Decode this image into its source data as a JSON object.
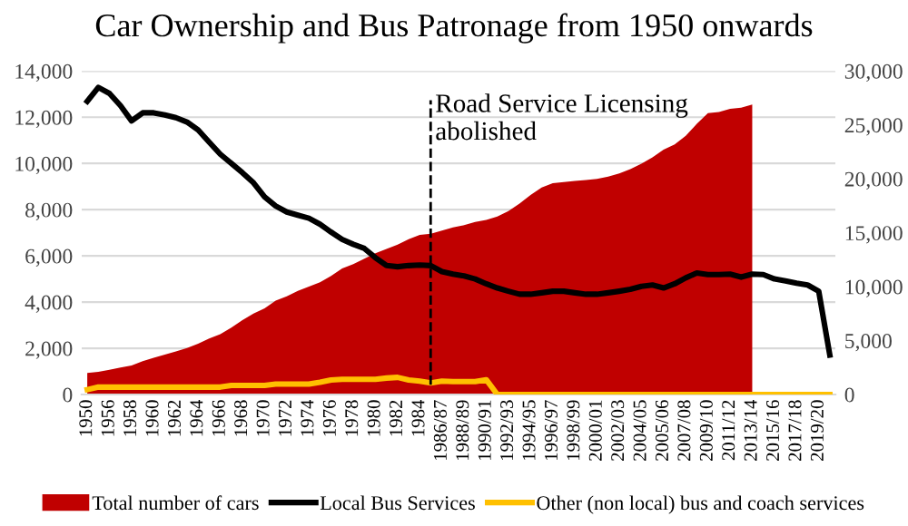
{
  "chart_data": {
    "type": "line",
    "title": "Car Ownership and Bus Patronage from 1950 onwards",
    "categories": [
      "1950",
      null,
      "1956",
      null,
      "1958",
      null,
      "1960",
      null,
      "1962",
      null,
      "1964",
      null,
      "1966",
      null,
      "1968",
      null,
      "1970",
      null,
      "1972",
      null,
      "1974",
      null,
      "1976",
      null,
      "1978",
      null,
      "1980",
      null,
      "1982",
      null,
      "1984",
      null,
      "1986/87",
      null,
      "1988/89",
      null,
      "1990/91",
      null,
      "1992/93",
      null,
      "1994/95",
      null,
      "1996/97",
      null,
      "1998/99",
      null,
      "2000/01",
      null,
      "2002/03",
      null,
      "2004/05",
      null,
      "2005/06",
      null,
      "2007/08",
      null,
      "2009/10",
      null,
      "2011/12",
      null,
      "2013/14",
      null,
      "2015/16",
      null,
      "2017/18",
      null,
      "2019/20",
      null
    ],
    "series": [
      {
        "name": "Total number of cars",
        "type": "area",
        "axis": "y2",
        "color": "#c00000",
        "values": [
          2000,
          2100,
          2300,
          2500,
          2700,
          3100,
          3400,
          3700,
          4000,
          4300,
          4700,
          5200,
          5600,
          6200,
          6900,
          7500,
          8000,
          8700,
          9100,
          9600,
          10000,
          10400,
          11000,
          11700,
          12100,
          12600,
          13100,
          13500,
          13900,
          14400,
          14800,
          14900,
          15200,
          15500,
          15700,
          16000,
          16200,
          16500,
          17000,
          17700,
          18500,
          19200,
          19600,
          19700,
          19800,
          19900,
          20000,
          20200,
          20500,
          20900,
          21400,
          22000,
          22700,
          23200,
          24000,
          25100,
          26100,
          26200,
          26500,
          26600,
          26900,
          null,
          null,
          null,
          null,
          null,
          null,
          null
        ]
      },
      {
        "name": "Local Bus Services",
        "color": "#000000",
        "values": [
          12690,
          13290,
          13030,
          12500,
          11840,
          12190,
          12190,
          12100,
          11980,
          11790,
          11450,
          10920,
          10400,
          10000,
          9600,
          9160,
          8550,
          8160,
          7900,
          7760,
          7630,
          7370,
          7030,
          6710,
          6500,
          6320,
          5920,
          5580,
          5530,
          5580,
          5600,
          5580,
          5320,
          5210,
          5130,
          5000,
          4790,
          4610,
          4470,
          4340,
          4340,
          4400,
          4470,
          4470,
          4400,
          4340,
          4340,
          4400,
          4470,
          4550,
          4680,
          4740,
          4610,
          4790,
          5050,
          5260,
          5190,
          5190,
          5210,
          5080,
          5210,
          5190,
          5000,
          4920,
          4820,
          4740,
          4470,
          1710
        ]
      },
      {
        "name": "Other (non local) bus and coach services",
        "color": "#ffc000",
        "values": [
          210,
          320,
          320,
          320,
          320,
          320,
          320,
          320,
          320,
          320,
          320,
          320,
          320,
          390,
          390,
          390,
          390,
          450,
          450,
          450,
          450,
          530,
          630,
          660,
          660,
          660,
          660,
          710,
          740,
          630,
          580,
          500,
          580,
          560,
          560,
          560,
          640,
          0,
          0,
          0,
          0,
          0,
          0,
          0,
          0,
          0,
          0,
          0,
          0,
          0,
          0,
          0,
          0,
          0,
          0,
          0,
          0,
          0,
          0,
          0,
          0,
          0,
          0,
          0,
          0,
          0,
          0,
          0
        ]
      }
    ],
    "ylim": [
      0,
      14000
    ],
    "yticks": [
      {
        "value": 0,
        "label": "0"
      },
      {
        "value": 2000,
        "label": "2,000"
      },
      {
        "value": 4000,
        "label": "4,000"
      },
      {
        "value": 6000,
        "label": "6,000"
      },
      {
        "value": 8000,
        "label": "8,000"
      },
      {
        "value": 10000,
        "label": "10,000"
      },
      {
        "value": 12000,
        "label": "12,000"
      },
      {
        "value": 14000,
        "label": "14,000"
      }
    ],
    "y2lim": [
      0,
      30000
    ],
    "y2ticks": [
      {
        "value": 0,
        "label": "0"
      },
      {
        "value": 5000,
        "label": "5,000"
      },
      {
        "value": 10000,
        "label": "10,000"
      },
      {
        "value": 15000,
        "label": "15,000"
      },
      {
        "value": 20000,
        "label": "20,000"
      },
      {
        "value": 25000,
        "label": "25,000"
      },
      {
        "value": 30000,
        "label": "30,000"
      }
    ],
    "annotations": [
      "Road Service Licensing\nabolished"
    ],
    "grid": "y",
    "legend": "bottom",
    "marker": "none",
    "line_style": "solid"
  }
}
